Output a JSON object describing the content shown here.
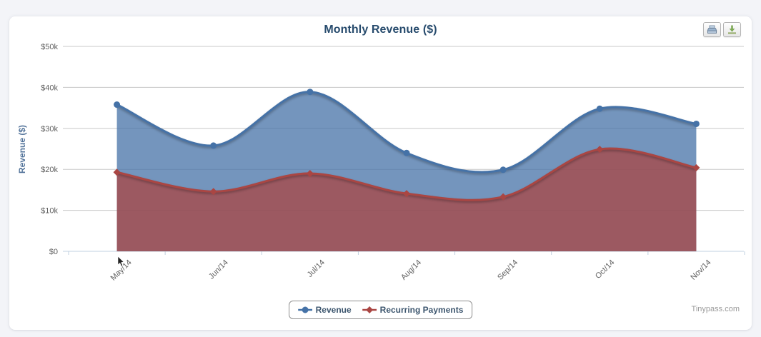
{
  "page": {
    "background": "#f3f4f8",
    "card_background": "#ffffff"
  },
  "toolbar": {
    "print_icon": "printer-icon",
    "download_icon": "download-icon"
  },
  "footer": {
    "brand": "Tinypass.com"
  },
  "chart_data": {
    "type": "area",
    "title": "Monthly Revenue ($)",
    "ylabel": "Revenue ($)",
    "xlabel": "",
    "categories": [
      "May/14",
      "Jun/14",
      "Jul/14",
      "Aug/14",
      "Sep/14",
      "Oct/14",
      "Nov/14"
    ],
    "series": [
      {
        "name": "Revenue",
        "color": "#4572A7",
        "marker": "circle",
        "values": [
          35800,
          25800,
          38900,
          24000,
          19900,
          34800,
          31100
        ]
      },
      {
        "name": "Recurring Payments",
        "color": "#AA4643",
        "marker": "diamond",
        "values": [
          19300,
          14600,
          19000,
          14100,
          13300,
          24900,
          20400
        ]
      }
    ],
    "ylim": [
      0,
      50000
    ],
    "yticks": {
      "values": [
        0,
        10000,
        20000,
        30000,
        40000,
        50000
      ],
      "labels": [
        "$0",
        "$10k",
        "$20k",
        "$30k",
        "$40k",
        "$50k"
      ]
    },
    "fill_opacity": 0.75,
    "grid": true,
    "legend_position": "bottom",
    "colors": {
      "gridline": "#c8c8c8",
      "axis_line": "#c0d0e0",
      "tick_label": "#5f5f5f",
      "title_text": "#274b6d",
      "legend_text": "#3e576f"
    }
  }
}
